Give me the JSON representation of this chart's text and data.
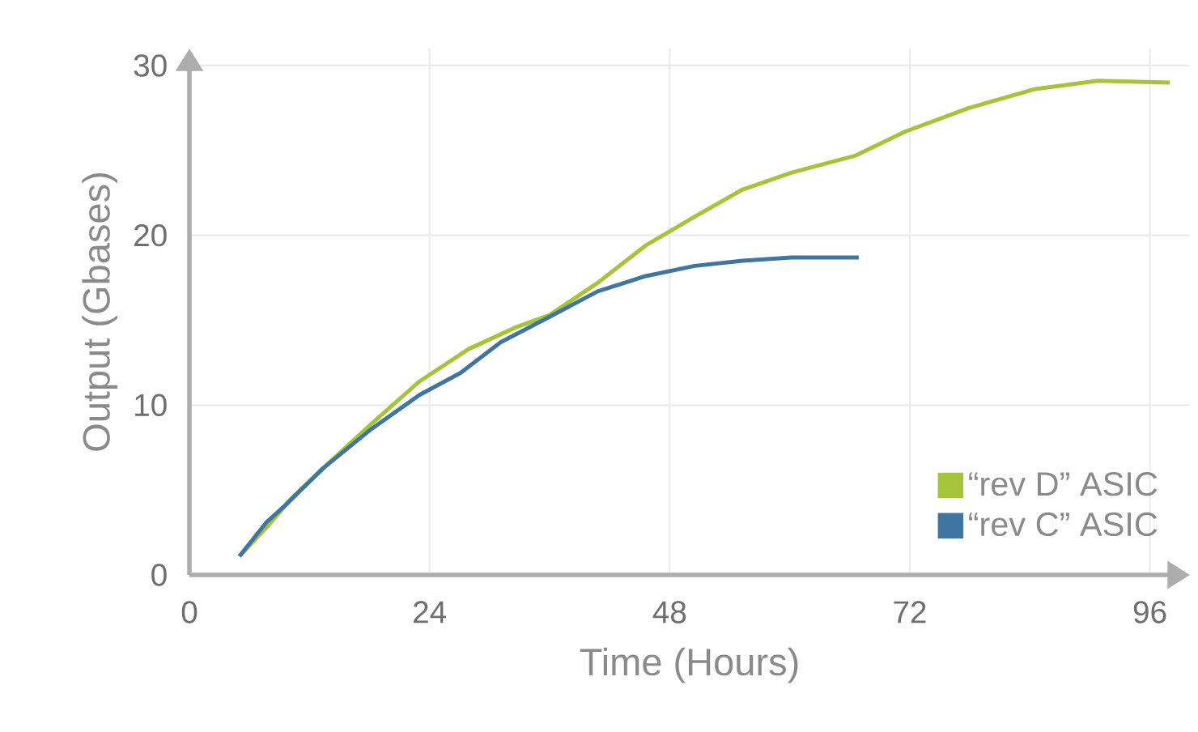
{
  "chart_data": {
    "type": "line",
    "xlabel": "Time (Hours)",
    "ylabel": "Output (Gbases)",
    "xlim": [
      0,
      100
    ],
    "ylim": [
      0,
      31
    ],
    "xticks": [
      0,
      24,
      48,
      72,
      96
    ],
    "yticks": [
      0,
      10,
      20,
      30
    ],
    "grid": true,
    "legend": "bottom right",
    "marker": "none",
    "line_style": "solid",
    "series": [
      {
        "name": "“rev D” ASIC",
        "color": "#a6c43a",
        "x": [
          5,
          7.7,
          10.2,
          13.4,
          18.2,
          23,
          27.9,
          32.7,
          36,
          40.8,
          45.6,
          50.5,
          55.3,
          60.2,
          66.6,
          71.5,
          77.9,
          84.4,
          90.8,
          98
        ],
        "values": [
          1.1,
          2.8,
          4.5,
          6.3,
          8.9,
          11.4,
          13.3,
          14.6,
          15.3,
          17.2,
          19.4,
          21.1,
          22.7,
          23.7,
          24.7,
          26.1,
          27.5,
          28.6,
          29.1,
          29
        ]
      },
      {
        "name": "“rev C” ASIC",
        "color": "#3f75a0",
        "x": [
          5,
          7.7,
          9.4,
          13.4,
          18.2,
          23,
          27.1,
          31.1,
          36,
          40.8,
          45.6,
          50.5,
          55.3,
          60.2,
          66.9
        ],
        "values": [
          1.1,
          3.1,
          4.0,
          6.3,
          8.6,
          10.6,
          11.9,
          13.7,
          15.2,
          16.7,
          17.6,
          18.2,
          18.5,
          18.7,
          18.7
        ]
      }
    ]
  }
}
